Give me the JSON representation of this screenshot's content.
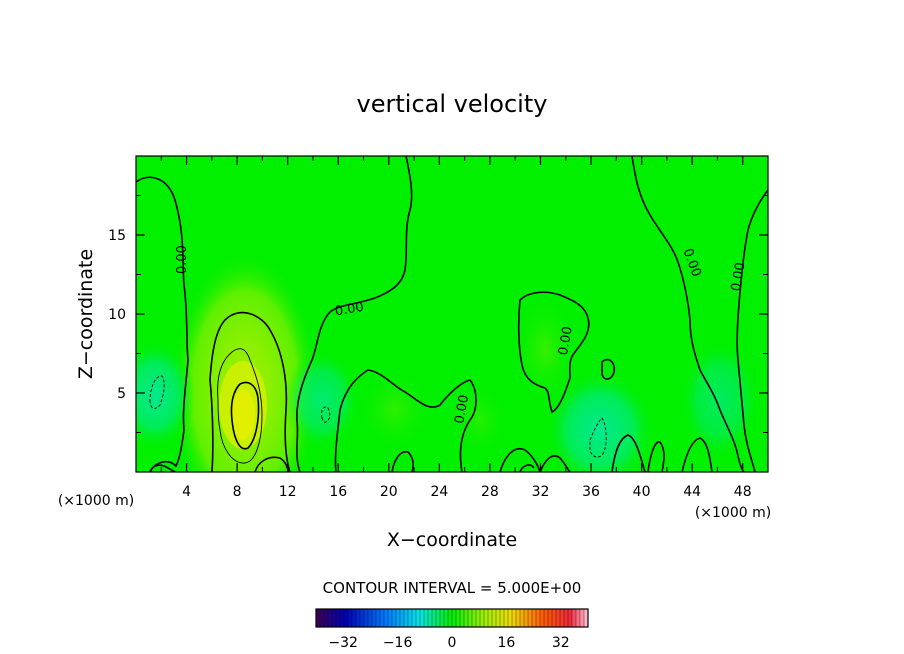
{
  "chart_data": {
    "type": "heatmap",
    "title": "vertical velocity",
    "xlabel": "X−coordinate",
    "ylabel": "Z−coordinate",
    "x_unit_left": "(×1000 m)",
    "x_unit_right": "(×1000 m)",
    "xlim": [
      0,
      50
    ],
    "ylim": [
      0,
      20
    ],
    "xticks": [
      4,
      8,
      12,
      16,
      20,
      24,
      28,
      32,
      36,
      40,
      44,
      48
    ],
    "yticks": [
      5,
      10,
      15
    ],
    "contour_interval_text": "CONTOUR INTERVAL = 5.000E+00",
    "contour_labels": [
      "0.00",
      "0.00",
      "0.00",
      "0.00",
      "0.00",
      "0.00",
      "0.00"
    ],
    "colorbar": {
      "min": -40,
      "max": 40,
      "ticks": [
        -32,
        -16,
        0,
        16,
        32
      ],
      "tick_labels": [
        "−32",
        "−16",
        "0",
        "16",
        "32"
      ]
    },
    "features": [
      {
        "kind": "max",
        "x": 8.5,
        "z": 3.8,
        "value": 12
      },
      {
        "kind": "min",
        "x": 2.0,
        "z": 5.0,
        "value": -7
      },
      {
        "kind": "min",
        "x": 14.5,
        "z": 3.5,
        "value": -4
      },
      {
        "kind": "min",
        "x": 36.5,
        "z": 2.0,
        "value": -8
      },
      {
        "kind": "max",
        "x": 32.0,
        "z": 7.5,
        "value": 3
      },
      {
        "kind": "max",
        "x": 21.0,
        "z": 4.5,
        "value": 2
      }
    ]
  }
}
